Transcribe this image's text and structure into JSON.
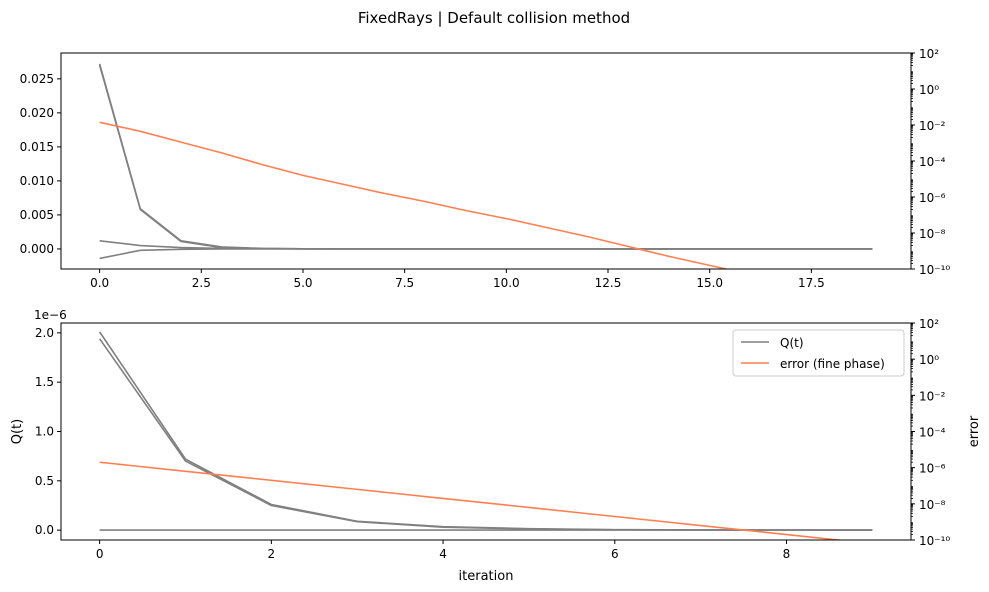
{
  "title": "FixedRays | Default collision method",
  "colors": {
    "q": "#808080",
    "error": "#ff7f50"
  },
  "chart_data": [
    {
      "type": "line",
      "x_ticks": [
        0.0,
        2.5,
        5.0,
        7.5,
        10.0,
        12.5,
        15.0,
        17.5
      ],
      "x_tick_labels": [
        "0.0",
        "2.5",
        "5.0",
        "7.5",
        "10.0",
        "12.5",
        "15.0",
        "17.5"
      ],
      "xlim": [
        -0.95,
        19.95
      ],
      "ylim": [
        -0.00295,
        0.0288
      ],
      "y_ticks": [
        0.0,
        0.005,
        0.01,
        0.015,
        0.02,
        0.025
      ],
      "y_tick_labels": [
        "0.000",
        "0.005",
        "0.010",
        "0.015",
        "0.020",
        "0.025"
      ],
      "y2_scale": "log",
      "y2lim_exp": [
        -10,
        2
      ],
      "y2_tick_exps": [
        -10,
        -8,
        -6,
        -4,
        -2,
        0,
        2
      ],
      "xlabel": "",
      "ylabel": "",
      "y2label": "",
      "series": [
        {
          "axis": "left",
          "color": "#808080",
          "x": [
            0,
            1,
            2,
            3,
            4,
            5,
            6,
            7,
            8,
            9,
            10,
            11,
            12,
            13,
            14,
            15,
            16,
            17,
            18,
            19
          ],
          "y": [
            0.0272,
            0.0059,
            0.0012,
            0.0003,
            8e-05,
            2e-05,
            0,
            0,
            0,
            0,
            0,
            0,
            0,
            0,
            0,
            0,
            0,
            0,
            0,
            0
          ]
        },
        {
          "axis": "left",
          "color": "#808080",
          "x": [
            0,
            1,
            2,
            3,
            4,
            5,
            6,
            7,
            8,
            9,
            10,
            11,
            12,
            13,
            14,
            15,
            16,
            17,
            18,
            19
          ],
          "y": [
            0.027,
            0.0058,
            0.0011,
            0.0002,
            5e-05,
            1e-05,
            0,
            0,
            0,
            0,
            0,
            0,
            0,
            0,
            0,
            0,
            0,
            0,
            0,
            0
          ]
        },
        {
          "axis": "left",
          "color": "#808080",
          "x": [
            0,
            1,
            2,
            3,
            4,
            5,
            6,
            7,
            8,
            9,
            10,
            11,
            12,
            13,
            14,
            15,
            16,
            17,
            18,
            19
          ],
          "y": [
            0.0012,
            0.0005,
            0.0002,
            8e-05,
            3e-05,
            1e-05,
            0,
            0,
            0,
            0,
            0,
            0,
            0,
            0,
            0,
            0,
            0,
            0,
            0,
            0
          ]
        },
        {
          "axis": "left",
          "color": "#808080",
          "x": [
            0,
            1,
            2,
            3,
            4,
            5,
            6,
            7,
            8,
            9,
            10,
            11,
            12,
            13,
            14,
            15,
            16,
            17,
            18,
            19
          ],
          "y": [
            -0.0014,
            -0.0002,
            -5e-05,
            -1e-05,
            0,
            0,
            0,
            0,
            0,
            0,
            0,
            0,
            0,
            0,
            0,
            0,
            0,
            0,
            0,
            0
          ]
        },
        {
          "axis": "right",
          "color": "#ff7f50",
          "x": [
            0,
            1,
            2,
            3,
            4,
            5,
            6,
            7,
            8,
            9,
            10,
            11,
            12,
            13,
            14,
            15,
            16
          ],
          "log10_y": [
            -1.85,
            -2.35,
            -2.95,
            -3.55,
            -4.2,
            -4.8,
            -5.3,
            -5.8,
            -6.25,
            -6.75,
            -7.2,
            -7.7,
            -8.2,
            -8.75,
            -9.3,
            -9.8,
            -10.3
          ]
        }
      ]
    },
    {
      "type": "line",
      "x_ticks": [
        0,
        2,
        4,
        6,
        8
      ],
      "x_tick_labels": [
        "0",
        "2",
        "4",
        "6",
        "8"
      ],
      "xlim": [
        -0.45,
        9.45
      ],
      "ylim": [
        -1e-07,
        2.1e-06
      ],
      "y_ticks": [
        0.0,
        5e-07,
        1e-06,
        1.5e-06,
        2e-06
      ],
      "y_tick_labels": [
        "0.0",
        "0.5",
        "1.0",
        "1.5",
        "2.0"
      ],
      "y_offset_text": "1e−6",
      "y2_scale": "log",
      "y2lim_exp": [
        -10,
        2
      ],
      "y2_tick_exps": [
        -10,
        -8,
        -6,
        -4,
        -2,
        0,
        2
      ],
      "xlabel": "iteration",
      "ylabel": "Q(t)",
      "y2label": "error",
      "legend": {
        "placement": "upper right",
        "entries": [
          {
            "label": "Q(t)",
            "color": "#808080"
          },
          {
            "label": "error (fine phase)",
            "color": "#ff7f50"
          }
        ]
      },
      "series": [
        {
          "axis": "left",
          "color": "#808080",
          "x": [
            0,
            1,
            2,
            3,
            4,
            5,
            6,
            7,
            8,
            9
          ],
          "y": [
            2.01e-06,
            7.2e-07,
            2.6e-07,
            9e-08,
            3.5e-08,
            1.5e-08,
            5e-09,
            2e-09,
            1e-09,
            5e-10
          ]
        },
        {
          "axis": "left",
          "color": "#808080",
          "x": [
            0,
            1,
            2,
            3,
            4,
            5,
            6,
            7,
            8,
            9
          ],
          "y": [
            1.94e-06,
            7e-07,
            2.5e-07,
            8.5e-08,
            3e-08,
            1.2e-08,
            4e-09,
            2e-09,
            1e-09,
            5e-10
          ]
        },
        {
          "axis": "left",
          "color": "#808080",
          "x": [
            0,
            1,
            2,
            3,
            4,
            5,
            6,
            7,
            8,
            9
          ],
          "y": [
            1e-09,
            1e-09,
            1e-09,
            1e-09,
            1e-09,
            1e-09,
            1e-09,
            1e-09,
            1e-09,
            1e-09
          ]
        },
        {
          "axis": "right",
          "color": "#ff7f50",
          "x": [
            0,
            1,
            2,
            3,
            4,
            5,
            6,
            7,
            8,
            9
          ],
          "log10_y": [
            -5.7,
            -6.2,
            -6.7,
            -7.2,
            -7.7,
            -8.2,
            -8.7,
            -9.2,
            -9.7,
            -10.2
          ]
        }
      ]
    }
  ]
}
